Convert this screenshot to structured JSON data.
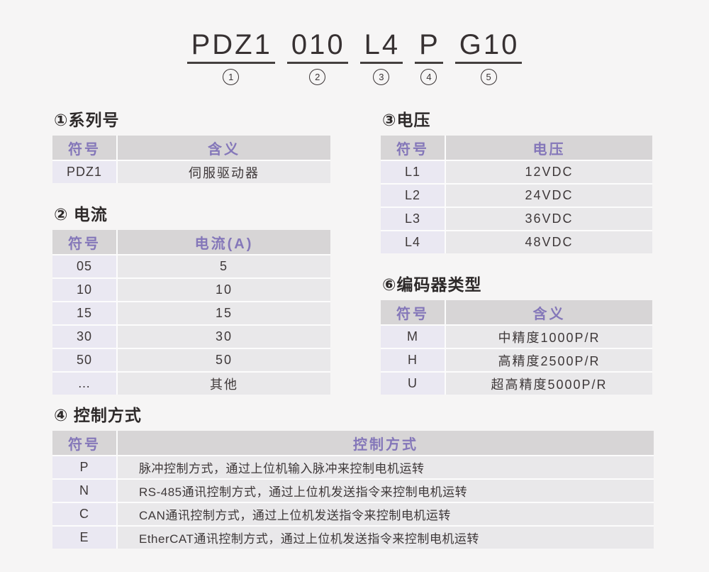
{
  "model_code": {
    "segments": [
      {
        "text": "PDZ1",
        "num": "1"
      },
      {
        "text": "010",
        "num": "2"
      },
      {
        "text": "L4",
        "num": "3"
      },
      {
        "text": "P",
        "num": "4"
      },
      {
        "text": "G10",
        "num": "5"
      }
    ]
  },
  "sections": {
    "series": {
      "title": "①系列号",
      "col_symbol": "符号",
      "col_value": "含义",
      "rows": [
        {
          "symbol": "PDZ1",
          "value": "伺服驱动器"
        }
      ]
    },
    "current": {
      "title": "② 电流",
      "col_symbol": "符号",
      "col_value": "电流(A)",
      "rows": [
        {
          "symbol": "05",
          "value": "5"
        },
        {
          "symbol": "10",
          "value": "10"
        },
        {
          "symbol": "15",
          "value": "15"
        },
        {
          "symbol": "30",
          "value": "30"
        },
        {
          "symbol": "50",
          "value": "50"
        },
        {
          "symbol": "…",
          "value": "其他"
        }
      ]
    },
    "voltage": {
      "title": "③电压",
      "col_symbol": "符号",
      "col_value": "电压",
      "rows": [
        {
          "symbol": "L1",
          "value": "12VDC"
        },
        {
          "symbol": "L2",
          "value": "24VDC"
        },
        {
          "symbol": "L3",
          "value": "36VDC"
        },
        {
          "symbol": "L4",
          "value": "48VDC"
        }
      ]
    },
    "encoder": {
      "title": "⑥编码器类型",
      "col_symbol": "符号",
      "col_value": "含义",
      "rows": [
        {
          "symbol": "M",
          "value": "中精度1000P/R"
        },
        {
          "symbol": "H",
          "value": "高精度2500P/R"
        },
        {
          "symbol": "U",
          "value": "超高精度5000P/R"
        }
      ]
    },
    "control": {
      "title": "④ 控制方式",
      "col_symbol": "符号",
      "col_value": "控制方式",
      "rows": [
        {
          "symbol": "P",
          "value": "脉冲控制方式，通过上位机输入脉冲来控制电机运转"
        },
        {
          "symbol": "N",
          "value": "RS-485通讯控制方式，通过上位机发送指令来控制电机运转"
        },
        {
          "symbol": "C",
          "value": "CAN通讯控制方式，通过上位机发送指令来控制电机运转"
        },
        {
          "symbol": "E",
          "value": "EtherCAT通讯控制方式，通过上位机发送指令来控制电机运转"
        }
      ]
    }
  },
  "colors": {
    "page_bg": "#f6f5f5",
    "table_header_bg": "#d7d5d6",
    "table_header_text": "#8477b9",
    "symbol_cell_bg": "#eae8f2",
    "value_cell_bg": "#e9e8ea",
    "separator": "#fcfcfc",
    "body_text": "#3e3839",
    "code_text": "#373132"
  }
}
